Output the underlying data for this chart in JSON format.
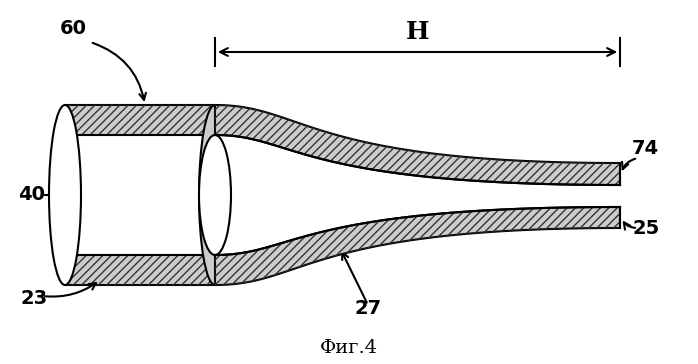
{
  "title": "Фиг.4",
  "bg_color": "#ffffff",
  "line_color": "#000000",
  "hatch_color": "#333333",
  "lw": 1.5
}
